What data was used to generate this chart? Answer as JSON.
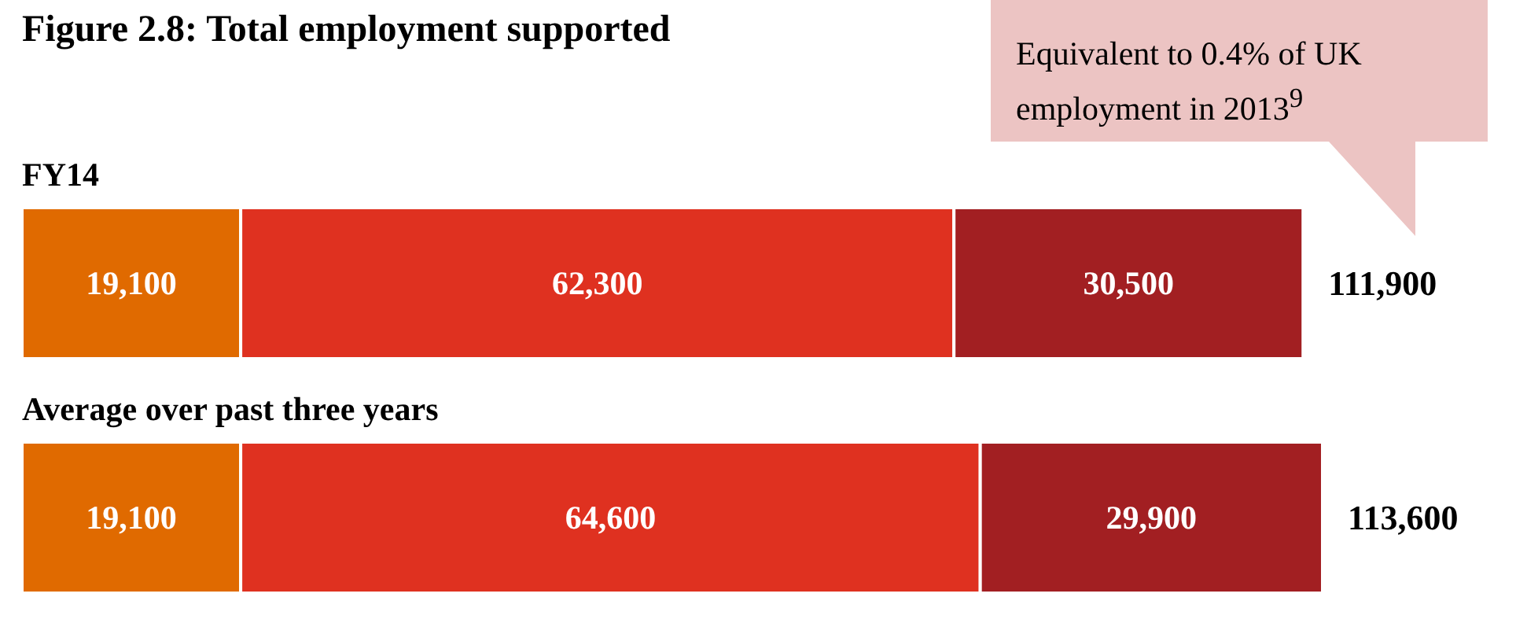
{
  "chart_data": {
    "type": "bar",
    "orientation": "horizontal",
    "stacked": true,
    "title": "Figure 2.8: Total employment supported",
    "categories": [
      "FY14",
      "Average over past three years"
    ],
    "series": [
      {
        "color": "#e06a00",
        "values": [
          19100,
          19100
        ],
        "value_labels": [
          "19,100",
          "19,100"
        ]
      },
      {
        "color": "#df3120",
        "values": [
          62300,
          64600
        ],
        "value_labels": [
          "62,300",
          "64,600"
        ]
      },
      {
        "color": "#a21f22",
        "values": [
          30500,
          29900
        ],
        "value_labels": [
          "30,500",
          "29,900"
        ]
      }
    ],
    "totals": [
      "111,900",
      "113,600"
    ],
    "annotations": [
      "Equivalent to 0.4% of UK employment in 2013$^{9}$"
    ]
  }
}
